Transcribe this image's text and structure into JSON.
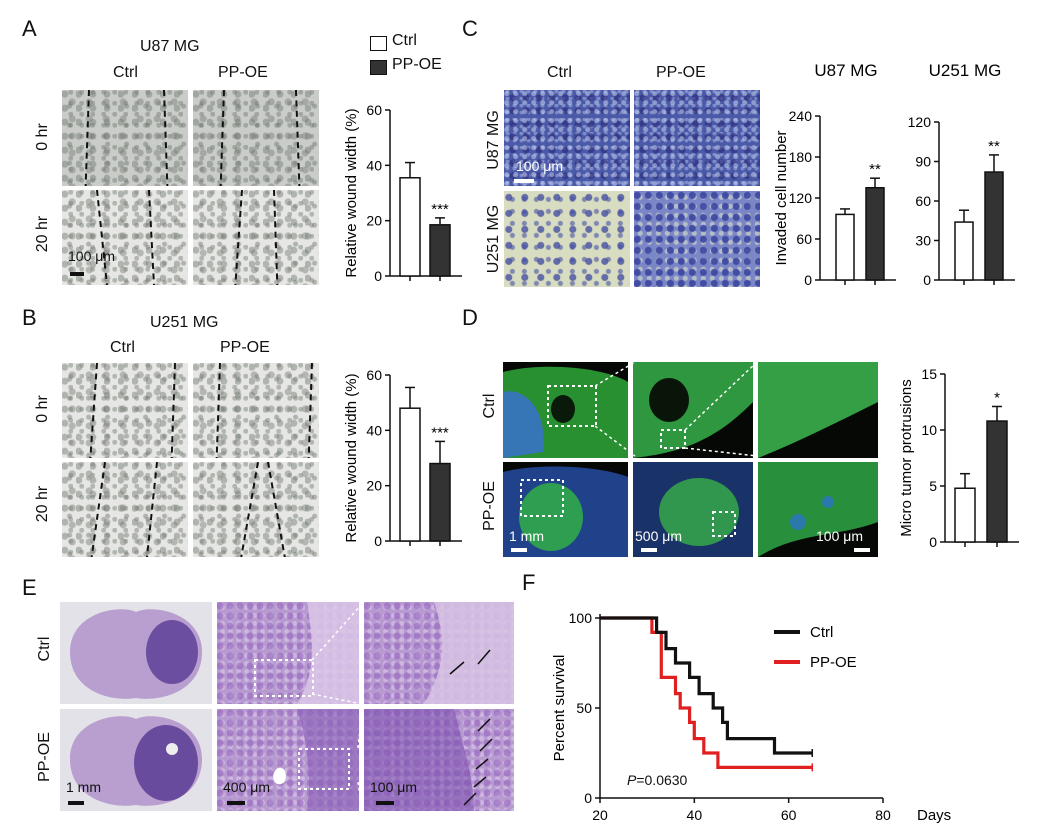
{
  "panels": {
    "A": {
      "letter": "A",
      "title": "U87 MG",
      "col_labels": [
        "Ctrl",
        "PP-OE"
      ],
      "row_labels": [
        "0 hr",
        "20 hr"
      ],
      "scale_label": "100 μm",
      "legend": [
        "Ctrl",
        "PP-OE"
      ]
    },
    "B": {
      "letter": "B",
      "title": "U251 MG",
      "col_labels": [
        "Ctrl",
        "PP-OE"
      ],
      "row_labels": [
        "0 hr",
        "20 hr"
      ]
    },
    "C": {
      "letter": "C",
      "col_labels": [
        "Ctrl",
        "PP-OE"
      ],
      "row_labels": [
        "U87 MG",
        "U251 MG"
      ],
      "scale_label": "100 μm",
      "chart_titles": [
        "U87 MG",
        "U251 MG"
      ]
    },
    "D": {
      "letter": "D",
      "row_labels": [
        "Ctrl",
        "PP-OE"
      ],
      "scale_labels": [
        "1 mm",
        "500 μm",
        "100 μm"
      ]
    },
    "E": {
      "letter": "E",
      "row_labels": [
        "Ctrl",
        "PP-OE"
      ],
      "scale_labels": [
        "1 mm",
        "400 μm",
        "100 μm"
      ]
    },
    "F": {
      "letter": "F",
      "p_label": "P",
      "p_value": "=0.0630"
    }
  },
  "chart_data": [
    {
      "id": "A-bar",
      "type": "bar",
      "categories": [
        "Ctrl",
        "PP-OE"
      ],
      "values": [
        35.5,
        18.5
      ],
      "errors": [
        5.5,
        2.5
      ],
      "ylabel": "Relative wound width (%)",
      "ylim": [
        0,
        60
      ],
      "yticks": [
        0,
        20,
        40,
        60
      ],
      "significance": "***",
      "colors": [
        "#ffffff",
        "#333333"
      ]
    },
    {
      "id": "B-bar",
      "type": "bar",
      "categories": [
        "Ctrl",
        "PP-OE"
      ],
      "values": [
        48,
        28
      ],
      "errors": [
        7.5,
        8
      ],
      "ylabel": "Relative wound width (%)",
      "ylim": [
        0,
        60
      ],
      "yticks": [
        0,
        20,
        40,
        60
      ],
      "significance": "***",
      "colors": [
        "#ffffff",
        "#333333"
      ]
    },
    {
      "id": "C-bar-U87",
      "type": "bar",
      "categories": [
        "Ctrl",
        "PP-OE"
      ],
      "values": [
        96,
        135
      ],
      "errors": [
        8,
        14
      ],
      "title": "U87 MG",
      "ylabel": "Invaded cell number",
      "ylim": [
        0,
        240
      ],
      "yticks": [
        0,
        60,
        120,
        180,
        240
      ],
      "significance": "**",
      "colors": [
        "#ffffff",
        "#333333"
      ]
    },
    {
      "id": "C-bar-U251",
      "type": "bar",
      "categories": [
        "Ctrl",
        "PP-OE"
      ],
      "values": [
        44,
        82
      ],
      "errors": [
        9,
        13
      ],
      "title": "U251 MG",
      "ylabel": "",
      "ylim": [
        0,
        120
      ],
      "yticks": [
        0,
        30,
        60,
        90,
        120
      ],
      "significance": "**",
      "colors": [
        "#ffffff",
        "#333333"
      ]
    },
    {
      "id": "D-bar",
      "type": "bar",
      "categories": [
        "Ctrl",
        "PP-OE"
      ],
      "values": [
        4.8,
        10.8
      ],
      "errors": [
        1.3,
        1.3
      ],
      "ylabel": "Micro tumor protrusions",
      "ylim": [
        0,
        15
      ],
      "yticks": [
        0,
        5,
        10,
        15
      ],
      "significance": "*",
      "colors": [
        "#ffffff",
        "#333333"
      ]
    },
    {
      "id": "F-survival",
      "type": "line",
      "xlabel": "Days",
      "ylabel": "Percent survival",
      "xlim": [
        20,
        80
      ],
      "ylim": [
        0,
        100
      ],
      "xticks": [
        20,
        40,
        60,
        80
      ],
      "yticks": [
        0,
        50,
        100
      ],
      "series": [
        {
          "name": "Ctrl",
          "color": "#111111",
          "x": [
            20,
            32,
            32,
            34,
            34,
            36,
            36,
            39,
            39,
            41,
            41,
            44,
            44,
            46,
            46,
            47,
            47,
            49,
            49,
            57,
            57,
            65
          ],
          "y": [
            100,
            100,
            92,
            92,
            83,
            83,
            75,
            75,
            67,
            67,
            58,
            58,
            50,
            50,
            42,
            42,
            33,
            33,
            33,
            33,
            25,
            25
          ]
        },
        {
          "name": "PP-OE",
          "color": "#e02020",
          "x": [
            20,
            31,
            31,
            33,
            33,
            36,
            36,
            37,
            37,
            39,
            39,
            40,
            40,
            42,
            42,
            45,
            45,
            65
          ],
          "y": [
            100,
            100,
            92,
            92,
            67,
            67,
            58,
            58,
            50,
            50,
            42,
            42,
            33,
            33,
            25,
            25,
            17,
            17
          ]
        }
      ]
    }
  ]
}
